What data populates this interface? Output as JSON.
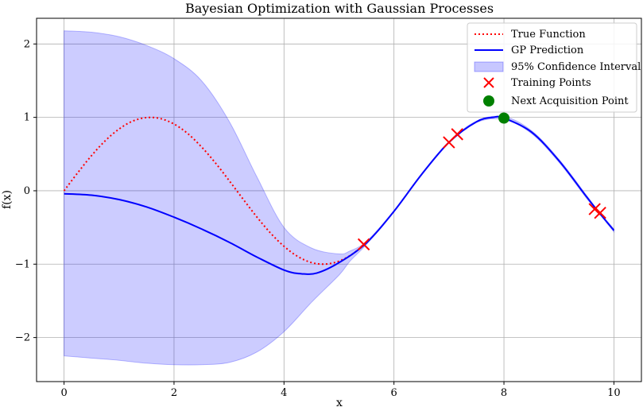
{
  "chart_data": {
    "type": "line",
    "title": "Bayesian Optimization with Gaussian Processes",
    "xlabel": "x",
    "ylabel": "f(x)",
    "xlim": [
      -0.5,
      10.5
    ],
    "ylim": [
      -2.6,
      2.35
    ],
    "xticks": [
      "0",
      "2",
      "4",
      "6",
      "8",
      "10"
    ],
    "yticks": [
      "−2",
      "−1",
      "0",
      "1",
      "2"
    ],
    "grid": true,
    "legend_position": "top-right",
    "series": [
      {
        "name": "True Function",
        "style": "dotted",
        "color": "#ff0000",
        "x": [
          0,
          0.25,
          0.5,
          0.75,
          1,
          1.25,
          1.5,
          1.75,
          2,
          2.25,
          2.5,
          2.75,
          3,
          3.25,
          3.5,
          3.75,
          4,
          4.25,
          4.5,
          4.75,
          5,
          5.25,
          5.5
        ],
        "y": [
          0,
          0.247,
          0.479,
          0.682,
          0.841,
          0.949,
          0.997,
          0.984,
          0.909,
          0.778,
          0.598,
          0.382,
          0.141,
          -0.108,
          -0.351,
          -0.572,
          -0.757,
          -0.895,
          -0.978,
          -0.999,
          -0.959,
          -0.859,
          -0.706
        ]
      },
      {
        "name": "GP Prediction",
        "style": "solid",
        "color": "#0000ff",
        "x": [
          0,
          0.5,
          1,
          1.5,
          2,
          2.5,
          3,
          3.5,
          4,
          4.3,
          4.6,
          5,
          5.5,
          6,
          6.5,
          7,
          7.5,
          7.8,
          8,
          8.5,
          9,
          9.5,
          9.7,
          10
        ],
        "y": [
          -0.04,
          -0.06,
          -0.12,
          -0.22,
          -0.36,
          -0.52,
          -0.7,
          -0.9,
          -1.08,
          -1.13,
          -1.12,
          -0.98,
          -0.71,
          -0.28,
          0.22,
          0.66,
          0.94,
          1.0,
          0.99,
          0.8,
          0.41,
          -0.08,
          -0.27,
          -0.54
        ]
      }
    ],
    "confidence_interval": {
      "name": "95% Confidence Interval",
      "color": "#0000ff",
      "x": [
        0,
        0.5,
        1,
        1.5,
        2,
        2.5,
        3,
        3.5,
        4,
        4.5,
        5,
        5.2,
        5.5,
        6,
        6.5,
        7,
        7.5,
        8,
        8.5,
        9,
        9.5,
        9.7,
        10
      ],
      "upper": [
        2.18,
        2.16,
        2.1,
        1.98,
        1.8,
        1.5,
        0.95,
        0.2,
        -0.5,
        -0.78,
        -0.86,
        -0.82,
        -0.69,
        -0.27,
        0.23,
        0.67,
        0.95,
        1.01,
        0.82,
        0.43,
        -0.06,
        -0.26,
        -0.52
      ],
      "lower": [
        -2.25,
        -2.28,
        -2.31,
        -2.35,
        -2.37,
        -2.37,
        -2.34,
        -2.2,
        -1.92,
        -1.52,
        -1.15,
        -0.96,
        -0.73,
        -0.29,
        0.21,
        0.65,
        0.93,
        0.97,
        0.78,
        0.39,
        -0.1,
        -0.28,
        -0.56
      ]
    },
    "training_points": {
      "name": "Training Points",
      "color": "#ff0000",
      "x": [
        5.45,
        7.0,
        7.15,
        9.65,
        9.75
      ],
      "y": [
        -0.73,
        0.66,
        0.77,
        -0.25,
        -0.3
      ]
    },
    "next_point": {
      "name": "Next Acquisition Point",
      "color": "#008000",
      "x": 8.0,
      "y": 0.99
    }
  }
}
